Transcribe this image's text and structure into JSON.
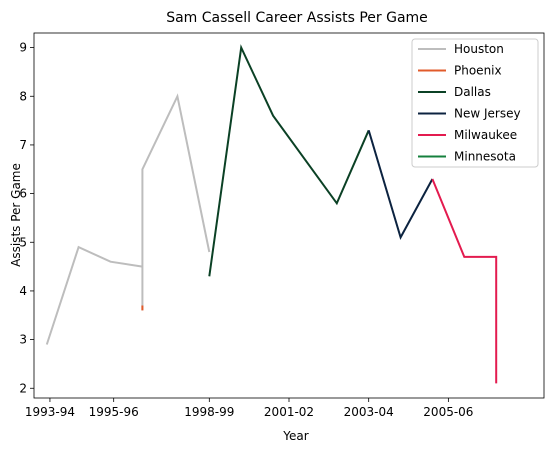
{
  "chart_data": {
    "type": "line",
    "title": "Sam Cassell Career Assists Per Game",
    "xlabel": "Year",
    "ylabel": "Assists Per Game",
    "xlim": [
      1993.5,
      2009.5
    ],
    "ylim": [
      1.8,
      9.3
    ],
    "xticks": [
      {
        "value": 1994,
        "label": "1993-94"
      },
      {
        "value": 1996,
        "label": "1995-96"
      },
      {
        "value": 1999,
        "label": "1998-99"
      },
      {
        "value": 2001.5,
        "label": "2001-02"
      },
      {
        "value": 2004,
        "label": "2003-04"
      },
      {
        "value": 2006.5,
        "label": "2005-06"
      }
    ],
    "yticks": [
      2,
      3,
      4,
      5,
      6,
      7,
      8,
      9
    ],
    "grid": false,
    "legend_position": "top-right",
    "series": [
      {
        "name": "Houston",
        "color": "#bdbdbd",
        "points": [
          [
            1993.9,
            2.9
          ],
          [
            1994.9,
            4.9
          ],
          [
            1995.9,
            4.6
          ],
          [
            1996.9,
            4.5
          ],
          [
            1996.9,
            3.6
          ],
          [
            1996.9,
            6.5
          ],
          [
            1998.0,
            8.0
          ],
          [
            1999.0,
            4.8
          ]
        ]
      },
      {
        "name": "Phoenix",
        "color": "#e15b2b",
        "points": [
          [
            1996.9,
            3.6
          ],
          [
            1996.9,
            3.7
          ]
        ]
      },
      {
        "name": "Dallas",
        "color": "#0b4125",
        "points": [
          [
            1999.0,
            4.3
          ],
          [
            2000.0,
            9.0
          ],
          [
            2001.0,
            7.6
          ],
          [
            2003.0,
            5.8
          ],
          [
            2004.0,
            7.3
          ]
        ]
      },
      {
        "name": "New Jersey",
        "color": "#0c2340",
        "points": [
          [
            2004.0,
            7.3
          ],
          [
            2005.0,
            5.1
          ],
          [
            2006.0,
            6.3
          ]
        ]
      },
      {
        "name": "Milwaukee",
        "color": "#e31b4f",
        "points": [
          [
            2006.0,
            6.3
          ],
          [
            2007.0,
            4.7
          ],
          [
            2008.0,
            4.7
          ],
          [
            2008.0,
            2.1
          ]
        ]
      },
      {
        "name": "Minnesota",
        "color": "#15803d",
        "points": []
      }
    ]
  }
}
